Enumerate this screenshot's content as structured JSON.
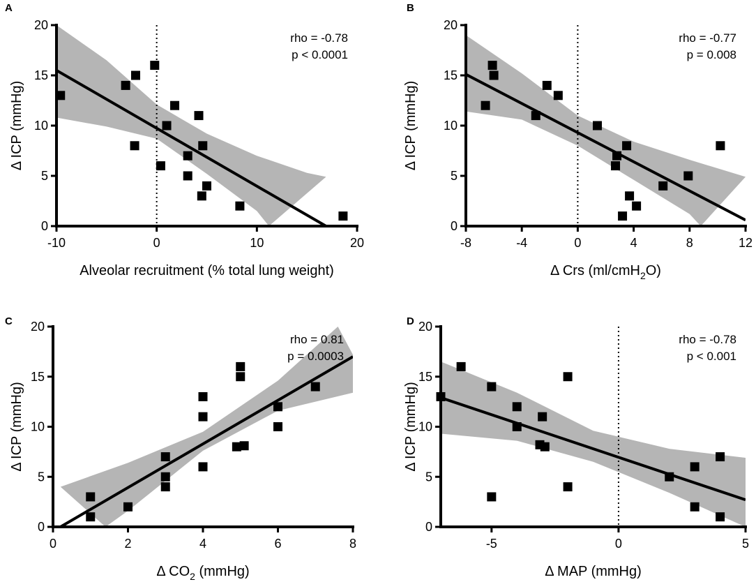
{
  "chart_data": [
    {
      "type": "scatter",
      "panel": "A",
      "xlabel": "Alveolar recruitment (% total lung weight)",
      "ylabel": "Δ ICP (mmHg)",
      "xlim": [
        -10,
        20
      ],
      "ylim": [
        0,
        20
      ],
      "xticks": [
        "-10",
        "0",
        "10",
        "20"
      ],
      "yticks": [
        "0",
        "5",
        "10",
        "15",
        "20"
      ],
      "stats": [
        "rho = -0.78",
        "p < 0.0001"
      ],
      "zero_line": true,
      "points": [
        {
          "x": -9.6,
          "y": 13
        },
        {
          "x": -3.1,
          "y": 14
        },
        {
          "x": -2.1,
          "y": 15
        },
        {
          "x": -2.2,
          "y": 8
        },
        {
          "x": -0.2,
          "y": 16
        },
        {
          "x": 0.4,
          "y": 6
        },
        {
          "x": 1.0,
          "y": 10
        },
        {
          "x": 1.8,
          "y": 12
        },
        {
          "x": 3.1,
          "y": 7
        },
        {
          "x": 3.1,
          "y": 5
        },
        {
          "x": 4.2,
          "y": 11
        },
        {
          "x": 4.6,
          "y": 8
        },
        {
          "x": 4.5,
          "y": 3
        },
        {
          "x": 5.0,
          "y": 4
        },
        {
          "x": 8.3,
          "y": 2
        },
        {
          "x": 18.6,
          "y": 1
        }
      ],
      "fit": {
        "x": [
          -10,
          16.9
        ],
        "y": [
          15.5,
          0
        ]
      },
      "band_upper": {
        "x": [
          -10,
          -5,
          0,
          5,
          10,
          15,
          16.9
        ],
        "y": [
          20,
          16.5,
          12.1,
          9.2,
          7.0,
          5.3,
          4.9
        ]
      },
      "band_lower": {
        "x": [
          -10,
          -5,
          0,
          5,
          10,
          11.2
        ],
        "y": [
          10.8,
          9.9,
          8.7,
          5.2,
          1.5,
          0
        ]
      }
    },
    {
      "type": "scatter",
      "panel": "B",
      "xlabel": "Δ Crs (ml/cmH",
      "xlabel_sub": "2",
      "xlabel_end": "O)",
      "ylabel": "Δ ICP (mmHg)",
      "xlim": [
        -8,
        12
      ],
      "ylim": [
        0,
        20
      ],
      "xticks": [
        "-8",
        "-4",
        "0",
        "4",
        "8",
        "12"
      ],
      "yticks": [
        "0",
        "5",
        "10",
        "15",
        "20"
      ],
      "stats": [
        "rho = -0.77",
        "p = 0.008"
      ],
      "zero_line": true,
      "points": [
        {
          "x": -6.6,
          "y": 12
        },
        {
          "x": -6.1,
          "y": 16
        },
        {
          "x": -6.0,
          "y": 15
        },
        {
          "x": -3.0,
          "y": 11
        },
        {
          "x": -2.2,
          "y": 14
        },
        {
          "x": -1.4,
          "y": 13
        },
        {
          "x": 1.4,
          "y": 10
        },
        {
          "x": 2.8,
          "y": 7
        },
        {
          "x": 2.7,
          "y": 6
        },
        {
          "x": 3.2,
          "y": 1
        },
        {
          "x": 3.5,
          "y": 8
        },
        {
          "x": 3.7,
          "y": 3
        },
        {
          "x": 4.2,
          "y": 2
        },
        {
          "x": 6.1,
          "y": 4
        },
        {
          "x": 7.9,
          "y": 5
        },
        {
          "x": 10.2,
          "y": 8
        }
      ],
      "fit": {
        "x": [
          -8,
          12
        ],
        "y": [
          15.1,
          0.6
        ]
      },
      "band_upper": {
        "x": [
          -8,
          -4,
          0,
          4,
          8,
          12
        ],
        "y": [
          19.0,
          15.2,
          11.0,
          8.4,
          6.6,
          4.9
        ]
      },
      "band_lower": {
        "x": [
          -8,
          -4,
          0,
          4,
          8,
          8.8
        ],
        "y": [
          11.4,
          10.6,
          8.0,
          4.6,
          1.2,
          0
        ]
      }
    },
    {
      "type": "scatter",
      "panel": "C",
      "xlabel": "Δ CO",
      "xlabel_sub": "2",
      "xlabel_end": " (mmHg)",
      "ylabel": "Δ ICP (mmHg)",
      "xlim": [
        0,
        8
      ],
      "ylim": [
        0,
        20
      ],
      "xticks": [
        "0",
        "2",
        "4",
        "6",
        "8"
      ],
      "yticks": [
        "0",
        "5",
        "10",
        "15",
        "20"
      ],
      "stats": [
        "rho = 0.81",
        "p = 0.0003"
      ],
      "zero_line": false,
      "points": [
        {
          "x": 1.0,
          "y": 3
        },
        {
          "x": 1.0,
          "y": 1
        },
        {
          "x": 2.0,
          "y": 2
        },
        {
          "x": 3.0,
          "y": 7
        },
        {
          "x": 3.0,
          "y": 5
        },
        {
          "x": 3.0,
          "y": 4
        },
        {
          "x": 4.0,
          "y": 13
        },
        {
          "x": 4.0,
          "y": 11
        },
        {
          "x": 4.0,
          "y": 6
        },
        {
          "x": 4.9,
          "y": 8
        },
        {
          "x": 5.1,
          "y": 8.1
        },
        {
          "x": 5.0,
          "y": 16
        },
        {
          "x": 5.0,
          "y": 15
        },
        {
          "x": 6.0,
          "y": 12
        },
        {
          "x": 6.0,
          "y": 10
        },
        {
          "x": 7.0,
          "y": 14
        }
      ],
      "fit": {
        "x": [
          0.2,
          8
        ],
        "y": [
          0,
          17
        ]
      },
      "band_upper": {
        "x": [
          0.2,
          2,
          4,
          6,
          7.6,
          8
        ],
        "y": [
          4.0,
          6.4,
          9.5,
          14.6,
          20,
          17.2
        ]
      },
      "band_lower": {
        "x": [
          1.4,
          2,
          4,
          6,
          8
        ],
        "y": [
          0,
          1.6,
          7.6,
          11.6,
          13.4
        ]
      }
    },
    {
      "type": "scatter",
      "panel": "D",
      "xlabel": "Δ MAP (mmHg)",
      "ylabel": "Δ ICP (mmHg)",
      "xlim": [
        -7,
        5
      ],
      "ylim": [
        0,
        20
      ],
      "xticks": [
        "-5",
        "0",
        "5"
      ],
      "xtick_values": [
        -5,
        0,
        5
      ],
      "yticks": [
        "0",
        "5",
        "10",
        "15",
        "20"
      ],
      "stats": [
        "rho = -0.78",
        "p < 0.001"
      ],
      "zero_line": true,
      "points": [
        {
          "x": -7,
          "y": 13
        },
        {
          "x": -6.2,
          "y": 16
        },
        {
          "x": -5.0,
          "y": 14
        },
        {
          "x": -5.0,
          "y": 3
        },
        {
          "x": -4.0,
          "y": 12
        },
        {
          "x": -4.0,
          "y": 10
        },
        {
          "x": -3.1,
          "y": 8.2
        },
        {
          "x": -2.9,
          "y": 8
        },
        {
          "x": -3.0,
          "y": 11
        },
        {
          "x": -2.0,
          "y": 15
        },
        {
          "x": -2.0,
          "y": 4
        },
        {
          "x": 2.0,
          "y": 5
        },
        {
          "x": 3.0,
          "y": 6
        },
        {
          "x": 3.0,
          "y": 2
        },
        {
          "x": 4.0,
          "y": 7
        },
        {
          "x": 4.0,
          "y": 1
        }
      ],
      "fit": {
        "x": [
          -7,
          5
        ],
        "y": [
          12.9,
          2.7
        ]
      },
      "band_upper": {
        "x": [
          -7,
          -4,
          -1,
          2,
          5
        ],
        "y": [
          16.5,
          13.4,
          9.6,
          7.8,
          6.9
        ]
      },
      "band_lower": {
        "x": [
          -7,
          -4,
          -1,
          2,
          5
        ],
        "y": [
          9.3,
          8.6,
          6.5,
          3.4,
          0
        ]
      }
    }
  ]
}
